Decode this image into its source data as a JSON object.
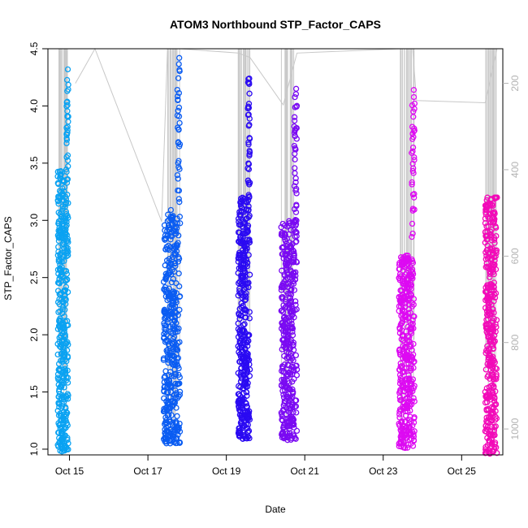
{
  "chart_data": {
    "type": "scatter",
    "title": "ATOM3 Northbound STP_Factor_CAPS",
    "xlabel": "Date",
    "ylabel": "STP_Factor_CAPS",
    "x_tick_labels": [
      "Oct 15",
      "Oct 17",
      "Oct 19",
      "Oct 21",
      "Oct 23",
      "Oct 25"
    ],
    "x_tick_days": [
      15,
      17,
      19,
      21,
      23,
      25
    ],
    "xlim_days": [
      14.45,
      26.05
    ],
    "ylim": [
      0.95,
      4.5
    ],
    "y_ticks": [
      1.0,
      1.5,
      2.0,
      2.5,
      3.0,
      3.5,
      4.0,
      4.5
    ],
    "y2_ticks": [
      200,
      400,
      600,
      800,
      1000
    ],
    "y2lim": [
      120,
      1060
    ],
    "grid": false,
    "legend": "none",
    "secondary_trace_color": "#c8c8c8",
    "series": [
      {
        "day_start": 14.7,
        "day_end": 14.97,
        "ymin": 0.98,
        "ymax": 3.45,
        "peak": 4.32,
        "color": "#0aa2f2"
      },
      {
        "day_start": 17.4,
        "day_end": 17.82,
        "ymin": 1.05,
        "ymax": 3.1,
        "peak": 4.42,
        "color": "#0a5cf2"
      },
      {
        "day_start": 19.3,
        "day_end": 19.6,
        "ymin": 1.09,
        "ymax": 3.2,
        "peak": 4.24,
        "color": "#2a0af2"
      },
      {
        "day_start": 20.4,
        "day_end": 20.8,
        "ymin": 1.08,
        "ymax": 3.0,
        "peak": 4.15,
        "color": "#7a0af2"
      },
      {
        "day_start": 23.4,
        "day_end": 23.8,
        "ymin": 1.01,
        "ymax": 2.7,
        "peak": 4.14,
        "color": "#dd0af2"
      },
      {
        "day_start": 25.6,
        "day_end": 25.9,
        "ymin": 0.96,
        "ymax": 3.2,
        "peak": 3.2,
        "color": "#f20ab8"
      }
    ],
    "trace_values": [
      [
        15.15,
        200
      ],
      [
        15.65,
        120
      ],
      [
        17.35,
        520
      ],
      [
        17.5,
        120
      ],
      [
        17.8,
        120
      ],
      [
        19.3,
        130
      ],
      [
        19.6,
        140
      ],
      [
        20.45,
        250
      ],
      [
        20.8,
        130
      ],
      [
        23.45,
        120
      ],
      [
        23.75,
        120
      ],
      [
        23.85,
        240
      ],
      [
        25.6,
        245
      ],
      [
        25.9,
        120
      ]
    ]
  }
}
